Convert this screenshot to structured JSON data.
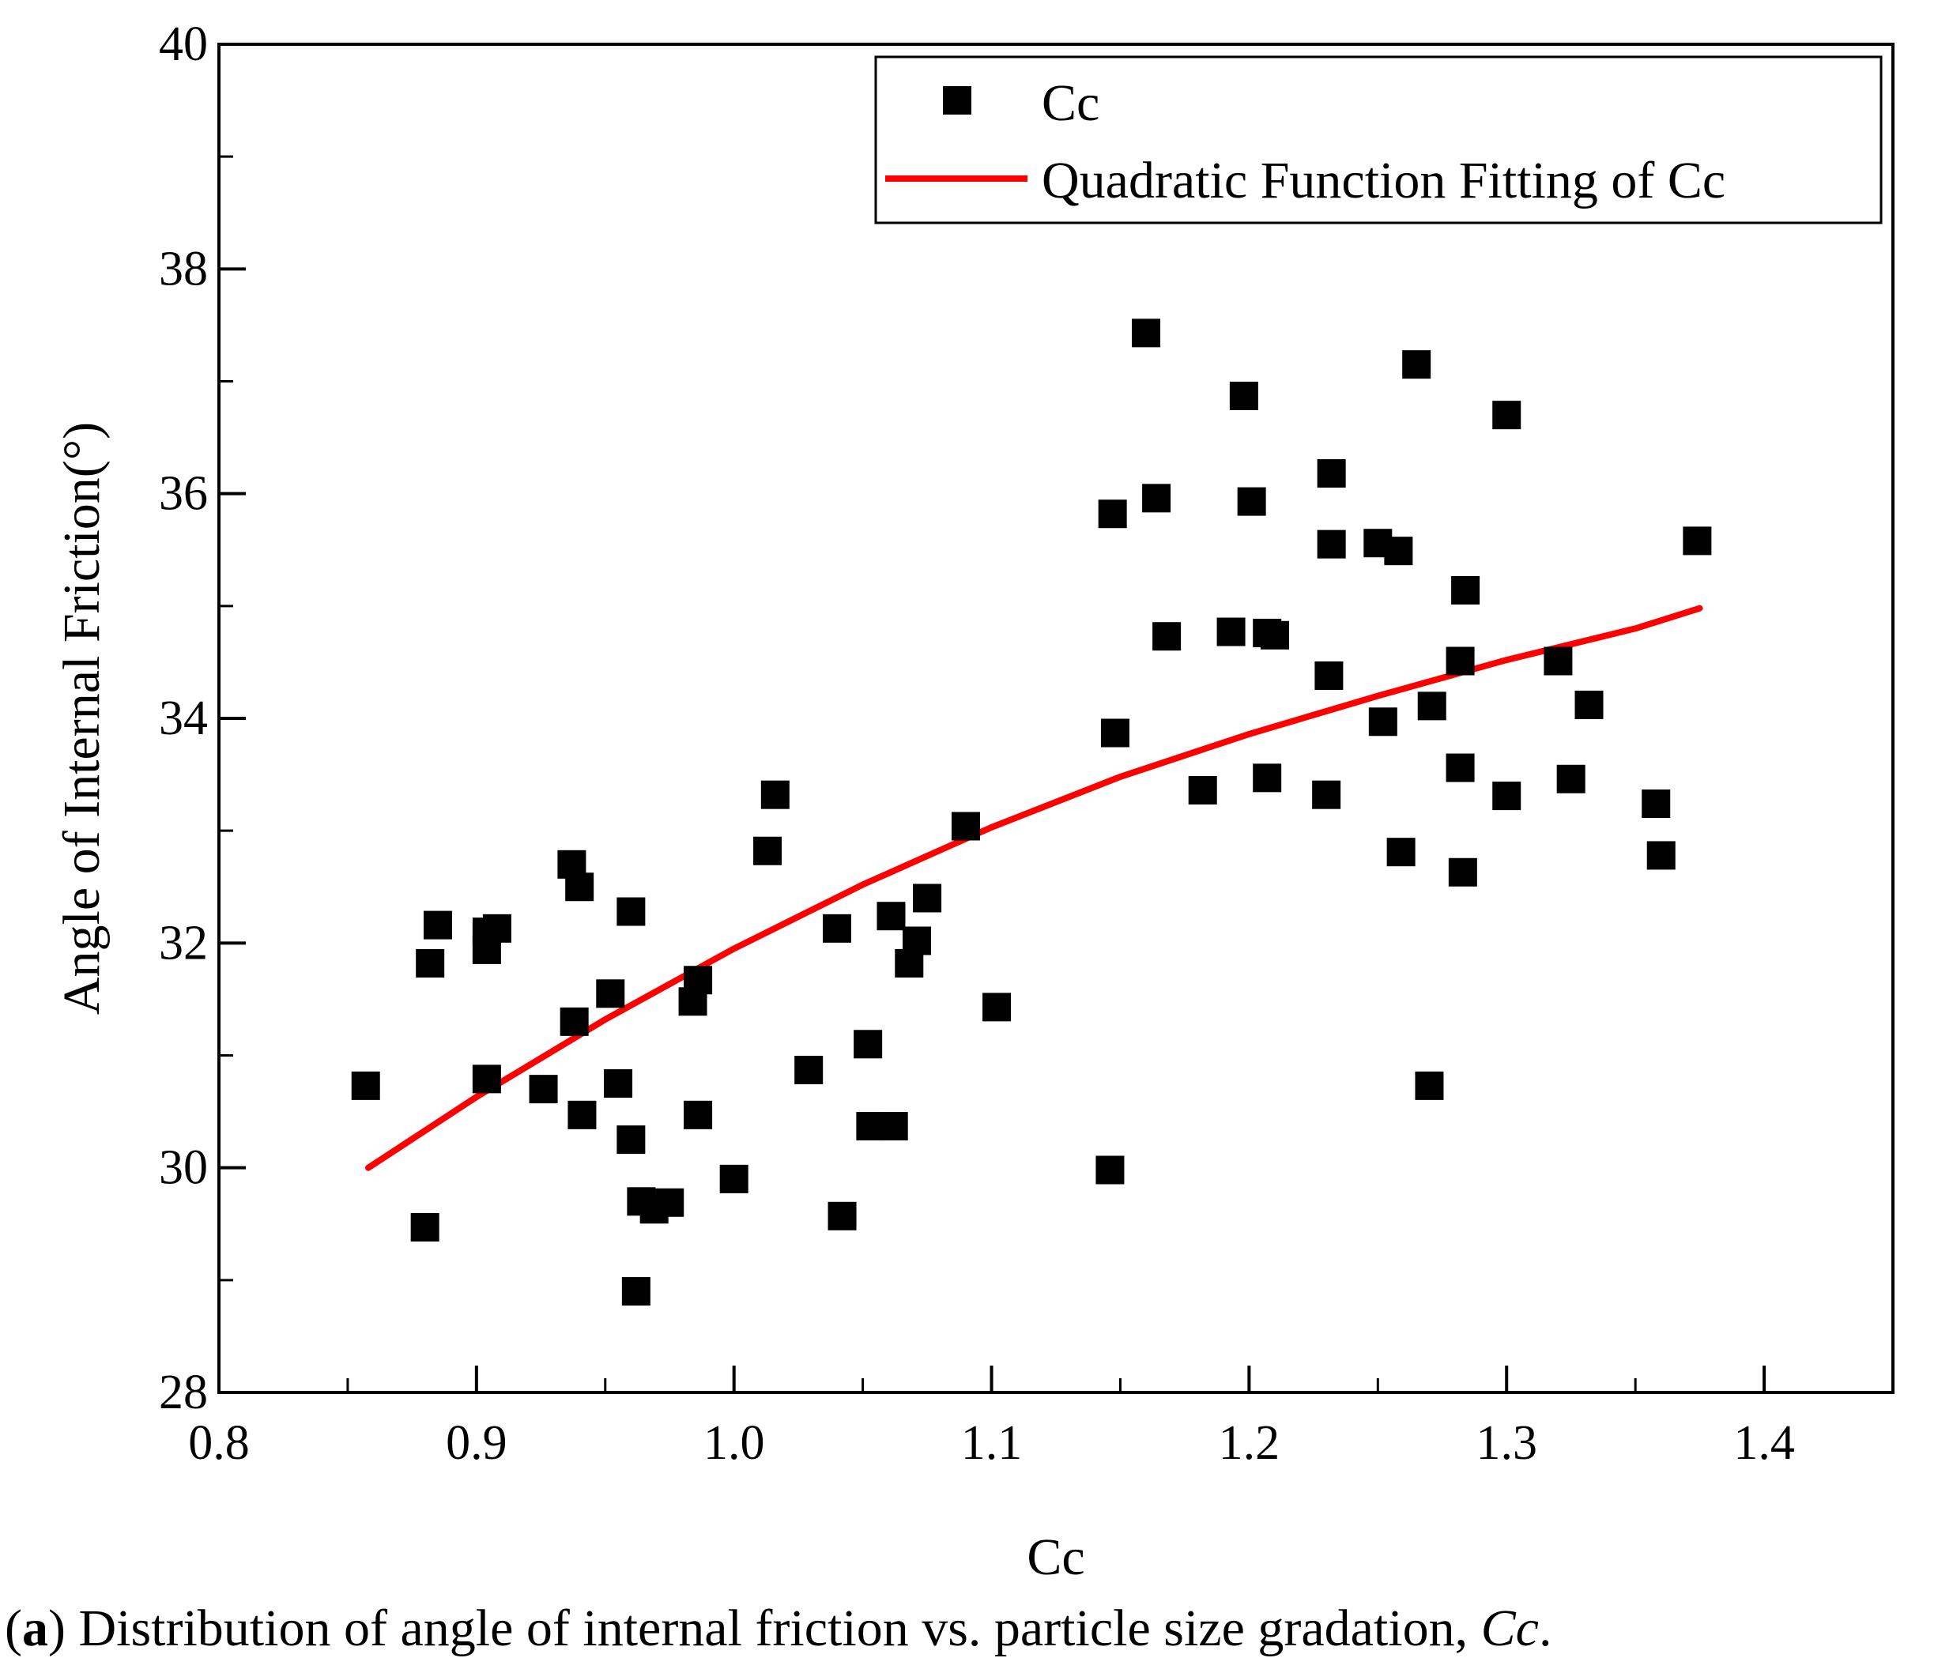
{
  "chart_data": {
    "type": "scatter",
    "title": "",
    "xlabel": "Cc",
    "ylabel": "Angle of Internal Friction(°)",
    "xlim": [
      0.8,
      1.45
    ],
    "ylim": [
      28,
      40
    ],
    "xticks": [
      "0.8",
      "0.9",
      "1.0",
      "1.1",
      "1.2",
      "1.3",
      "1.4"
    ],
    "yticks": [
      "28",
      "30",
      "32",
      "34",
      "36",
      "38",
      "40"
    ],
    "grid": false,
    "legend_position": "top-right",
    "series": [
      {
        "name": "Cc",
        "kind": "scatter",
        "marker": "square",
        "color": "#000000",
        "points": [
          [
            0.857,
            30.73
          ],
          [
            0.88,
            29.47
          ],
          [
            0.882,
            31.82
          ],
          [
            0.885,
            32.16
          ],
          [
            0.904,
            31.94
          ],
          [
            0.904,
            32.1
          ],
          [
            0.908,
            32.13
          ],
          [
            0.904,
            30.79
          ],
          [
            0.926,
            30.7
          ],
          [
            0.937,
            32.7
          ],
          [
            0.94,
            32.5
          ],
          [
            0.938,
            31.3
          ],
          [
            0.941,
            30.47
          ],
          [
            0.952,
            31.55
          ],
          [
            0.955,
            30.75
          ],
          [
            0.96,
            32.28
          ],
          [
            0.96,
            30.25
          ],
          [
            0.962,
            28.9
          ],
          [
            0.964,
            29.7
          ],
          [
            0.969,
            29.63
          ],
          [
            0.975,
            29.69
          ],
          [
            0.984,
            31.48
          ],
          [
            0.986,
            31.67
          ],
          [
            0.986,
            30.47
          ],
          [
            1.0,
            29.9
          ],
          [
            1.013,
            32.82
          ],
          [
            1.016,
            33.32
          ],
          [
            1.029,
            30.87
          ],
          [
            1.04,
            32.13
          ],
          [
            1.042,
            29.57
          ],
          [
            1.052,
            31.1
          ],
          [
            1.053,
            30.37
          ],
          [
            1.061,
            32.24
          ],
          [
            1.062,
            30.37
          ],
          [
            1.068,
            31.82
          ],
          [
            1.071,
            32.02
          ],
          [
            1.075,
            32.4
          ],
          [
            1.09,
            33.04
          ],
          [
            1.102,
            31.43
          ],
          [
            1.146,
            29.98
          ],
          [
            1.147,
            35.82
          ],
          [
            1.148,
            33.87
          ],
          [
            1.16,
            37.43
          ],
          [
            1.164,
            35.96
          ],
          [
            1.168,
            34.73
          ],
          [
            1.182,
            33.36
          ],
          [
            1.193,
            34.77
          ],
          [
            1.198,
            36.87
          ],
          [
            1.201,
            35.93
          ],
          [
            1.207,
            33.47
          ],
          [
            1.207,
            34.76
          ],
          [
            1.21,
            34.74
          ],
          [
            1.23,
            33.32
          ],
          [
            1.231,
            34.38
          ],
          [
            1.232,
            35.55
          ],
          [
            1.232,
            36.18
          ],
          [
            1.25,
            35.56
          ],
          [
            1.252,
            33.97
          ],
          [
            1.258,
            35.49
          ],
          [
            1.259,
            32.81
          ],
          [
            1.265,
            37.15
          ],
          [
            1.27,
            30.73
          ],
          [
            1.271,
            34.11
          ],
          [
            1.282,
            33.56
          ],
          [
            1.282,
            34.51
          ],
          [
            1.283,
            32.63
          ],
          [
            1.284,
            35.14
          ],
          [
            1.3,
            36.7
          ],
          [
            1.3,
            33.31
          ],
          [
            1.32,
            34.51
          ],
          [
            1.325,
            33.46
          ],
          [
            1.332,
            34.12
          ],
          [
            1.358,
            33.24
          ],
          [
            1.36,
            32.78
          ],
          [
            1.374,
            35.58
          ]
        ]
      },
      {
        "name": "Quadratic Function Fitting of Cc",
        "kind": "line",
        "color": "#ff0000",
        "points": [
          [
            0.858,
            30.0
          ],
          [
            0.9,
            30.63
          ],
          [
            0.95,
            31.32
          ],
          [
            1.0,
            31.95
          ],
          [
            1.05,
            32.52
          ],
          [
            1.1,
            33.03
          ],
          [
            1.15,
            33.48
          ],
          [
            1.2,
            33.86
          ],
          [
            1.25,
            34.2
          ],
          [
            1.3,
            34.52
          ],
          [
            1.35,
            34.8
          ],
          [
            1.375,
            34.98
          ]
        ]
      }
    ]
  },
  "caption": {
    "label": "a",
    "text": " Distribution of angle of internal friction vs. particle size gradation, ",
    "italic": "Cc",
    "end": "."
  }
}
